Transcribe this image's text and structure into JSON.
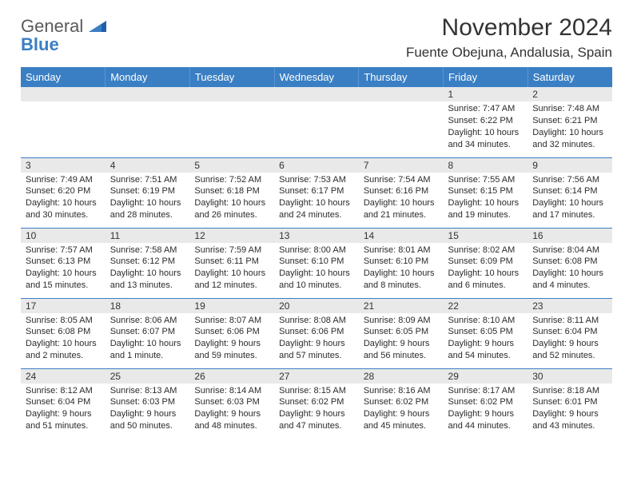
{
  "logo": {
    "general": "General",
    "blue": "Blue"
  },
  "title": "November 2024",
  "location": "Fuente Obejuna, Andalusia, Spain",
  "weekdays": [
    "Sunday",
    "Monday",
    "Tuesday",
    "Wednesday",
    "Thursday",
    "Friday",
    "Saturday"
  ],
  "colors": {
    "header_bg": "#3a7fc4",
    "header_text": "#ffffff",
    "daynum_bg": "#e9e9e9",
    "border": "#3a7fc4",
    "logo_gray": "#5a5a5a",
    "logo_blue": "#3a7fc4"
  },
  "weeks": [
    [
      {
        "n": "",
        "sr": "",
        "ss": "",
        "dl": ""
      },
      {
        "n": "",
        "sr": "",
        "ss": "",
        "dl": ""
      },
      {
        "n": "",
        "sr": "",
        "ss": "",
        "dl": ""
      },
      {
        "n": "",
        "sr": "",
        "ss": "",
        "dl": ""
      },
      {
        "n": "",
        "sr": "",
        "ss": "",
        "dl": ""
      },
      {
        "n": "1",
        "sr": "Sunrise: 7:47 AM",
        "ss": "Sunset: 6:22 PM",
        "dl": "Daylight: 10 hours and 34 minutes."
      },
      {
        "n": "2",
        "sr": "Sunrise: 7:48 AM",
        "ss": "Sunset: 6:21 PM",
        "dl": "Daylight: 10 hours and 32 minutes."
      }
    ],
    [
      {
        "n": "3",
        "sr": "Sunrise: 7:49 AM",
        "ss": "Sunset: 6:20 PM",
        "dl": "Daylight: 10 hours and 30 minutes."
      },
      {
        "n": "4",
        "sr": "Sunrise: 7:51 AM",
        "ss": "Sunset: 6:19 PM",
        "dl": "Daylight: 10 hours and 28 minutes."
      },
      {
        "n": "5",
        "sr": "Sunrise: 7:52 AM",
        "ss": "Sunset: 6:18 PM",
        "dl": "Daylight: 10 hours and 26 minutes."
      },
      {
        "n": "6",
        "sr": "Sunrise: 7:53 AM",
        "ss": "Sunset: 6:17 PM",
        "dl": "Daylight: 10 hours and 24 minutes."
      },
      {
        "n": "7",
        "sr": "Sunrise: 7:54 AM",
        "ss": "Sunset: 6:16 PM",
        "dl": "Daylight: 10 hours and 21 minutes."
      },
      {
        "n": "8",
        "sr": "Sunrise: 7:55 AM",
        "ss": "Sunset: 6:15 PM",
        "dl": "Daylight: 10 hours and 19 minutes."
      },
      {
        "n": "9",
        "sr": "Sunrise: 7:56 AM",
        "ss": "Sunset: 6:14 PM",
        "dl": "Daylight: 10 hours and 17 minutes."
      }
    ],
    [
      {
        "n": "10",
        "sr": "Sunrise: 7:57 AM",
        "ss": "Sunset: 6:13 PM",
        "dl": "Daylight: 10 hours and 15 minutes."
      },
      {
        "n": "11",
        "sr": "Sunrise: 7:58 AM",
        "ss": "Sunset: 6:12 PM",
        "dl": "Daylight: 10 hours and 13 minutes."
      },
      {
        "n": "12",
        "sr": "Sunrise: 7:59 AM",
        "ss": "Sunset: 6:11 PM",
        "dl": "Daylight: 10 hours and 12 minutes."
      },
      {
        "n": "13",
        "sr": "Sunrise: 8:00 AM",
        "ss": "Sunset: 6:10 PM",
        "dl": "Daylight: 10 hours and 10 minutes."
      },
      {
        "n": "14",
        "sr": "Sunrise: 8:01 AM",
        "ss": "Sunset: 6:10 PM",
        "dl": "Daylight: 10 hours and 8 minutes."
      },
      {
        "n": "15",
        "sr": "Sunrise: 8:02 AM",
        "ss": "Sunset: 6:09 PM",
        "dl": "Daylight: 10 hours and 6 minutes."
      },
      {
        "n": "16",
        "sr": "Sunrise: 8:04 AM",
        "ss": "Sunset: 6:08 PM",
        "dl": "Daylight: 10 hours and 4 minutes."
      }
    ],
    [
      {
        "n": "17",
        "sr": "Sunrise: 8:05 AM",
        "ss": "Sunset: 6:08 PM",
        "dl": "Daylight: 10 hours and 2 minutes."
      },
      {
        "n": "18",
        "sr": "Sunrise: 8:06 AM",
        "ss": "Sunset: 6:07 PM",
        "dl": "Daylight: 10 hours and 1 minute."
      },
      {
        "n": "19",
        "sr": "Sunrise: 8:07 AM",
        "ss": "Sunset: 6:06 PM",
        "dl": "Daylight: 9 hours and 59 minutes."
      },
      {
        "n": "20",
        "sr": "Sunrise: 8:08 AM",
        "ss": "Sunset: 6:06 PM",
        "dl": "Daylight: 9 hours and 57 minutes."
      },
      {
        "n": "21",
        "sr": "Sunrise: 8:09 AM",
        "ss": "Sunset: 6:05 PM",
        "dl": "Daylight: 9 hours and 56 minutes."
      },
      {
        "n": "22",
        "sr": "Sunrise: 8:10 AM",
        "ss": "Sunset: 6:05 PM",
        "dl": "Daylight: 9 hours and 54 minutes."
      },
      {
        "n": "23",
        "sr": "Sunrise: 8:11 AM",
        "ss": "Sunset: 6:04 PM",
        "dl": "Daylight: 9 hours and 52 minutes."
      }
    ],
    [
      {
        "n": "24",
        "sr": "Sunrise: 8:12 AM",
        "ss": "Sunset: 6:04 PM",
        "dl": "Daylight: 9 hours and 51 minutes."
      },
      {
        "n": "25",
        "sr": "Sunrise: 8:13 AM",
        "ss": "Sunset: 6:03 PM",
        "dl": "Daylight: 9 hours and 50 minutes."
      },
      {
        "n": "26",
        "sr": "Sunrise: 8:14 AM",
        "ss": "Sunset: 6:03 PM",
        "dl": "Daylight: 9 hours and 48 minutes."
      },
      {
        "n": "27",
        "sr": "Sunrise: 8:15 AM",
        "ss": "Sunset: 6:02 PM",
        "dl": "Daylight: 9 hours and 47 minutes."
      },
      {
        "n": "28",
        "sr": "Sunrise: 8:16 AM",
        "ss": "Sunset: 6:02 PM",
        "dl": "Daylight: 9 hours and 45 minutes."
      },
      {
        "n": "29",
        "sr": "Sunrise: 8:17 AM",
        "ss": "Sunset: 6:02 PM",
        "dl": "Daylight: 9 hours and 44 minutes."
      },
      {
        "n": "30",
        "sr": "Sunrise: 8:18 AM",
        "ss": "Sunset: 6:01 PM",
        "dl": "Daylight: 9 hours and 43 minutes."
      }
    ]
  ]
}
